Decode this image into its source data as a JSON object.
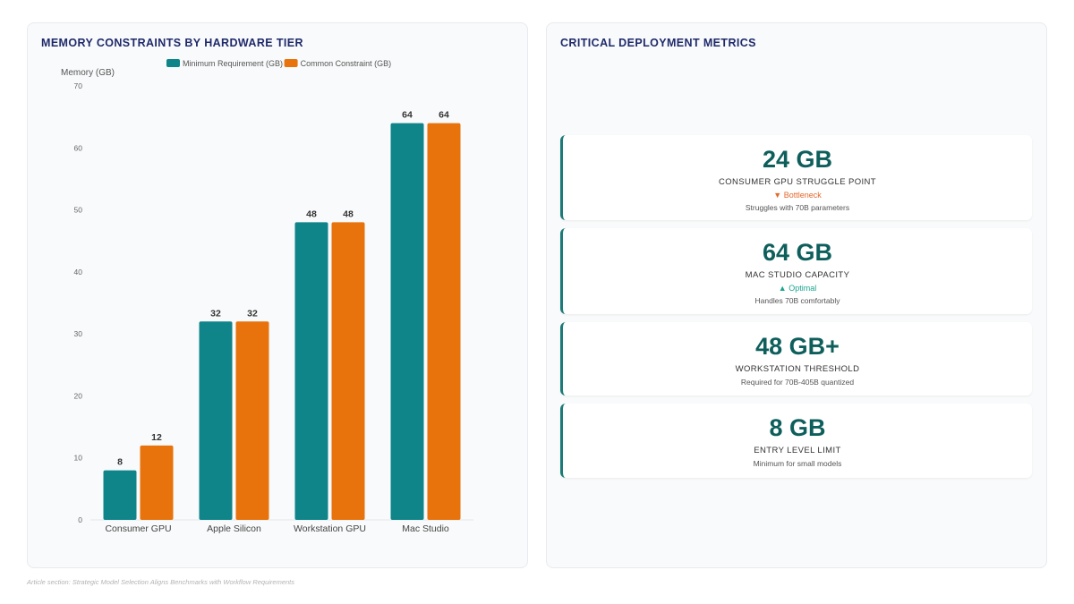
{
  "left_panel": {
    "title": "MEMORY CONSTRAINTS BY HARDWARE TIER"
  },
  "right_panel": {
    "title": "CRITICAL DEPLOYMENT METRICS"
  },
  "chart_data": {
    "type": "bar",
    "title": "",
    "ylabel": "Memory (GB)",
    "xlabel": "",
    "categories": [
      "Consumer GPU",
      "Apple Silicon",
      "Workstation GPU",
      "Mac Studio"
    ],
    "series": [
      {
        "name": "Minimum Requirement (GB)",
        "values": [
          8,
          32,
          48,
          64
        ],
        "color": "#0f858a"
      },
      {
        "name": "Common Constraint (GB)",
        "values": [
          12,
          32,
          48,
          64
        ],
        "color": "#e8730c"
      }
    ],
    "ylim": [
      0,
      70
    ],
    "yticks": [
      0,
      10,
      20,
      30,
      40,
      50,
      60,
      70
    ],
    "grid": false,
    "legend_position": "top",
    "data_labels": true
  },
  "metrics": [
    {
      "value": "24 GB",
      "label": "CONSUMER GPU STRUGGLE POINT",
      "trend": "▼ Bottleneck",
      "trend_dir": "down",
      "sub": "Struggles with 70B parameters"
    },
    {
      "value": "64 GB",
      "label": "MAC STUDIO CAPACITY",
      "trend": "▲ Optimal",
      "trend_dir": "up",
      "sub": "Handles 70B comfortably"
    },
    {
      "value": "48 GB+",
      "label": "WORKSTATION THRESHOLD",
      "trend": "",
      "trend_dir": "",
      "sub": "Required for 70B-405B quantized"
    },
    {
      "value": "8 GB",
      "label": "ENTRY LEVEL LIMIT",
      "trend": "",
      "trend_dir": "",
      "sub": "Minimum for small models"
    }
  ],
  "footer": "Article section: Strategic Model Selection Aligns Benchmarks with Workflow Requirements",
  "colors": {
    "accent": "#0e5f5c",
    "teal": "#0f858a",
    "orange": "#e8730c",
    "title": "#1f2a6b"
  }
}
